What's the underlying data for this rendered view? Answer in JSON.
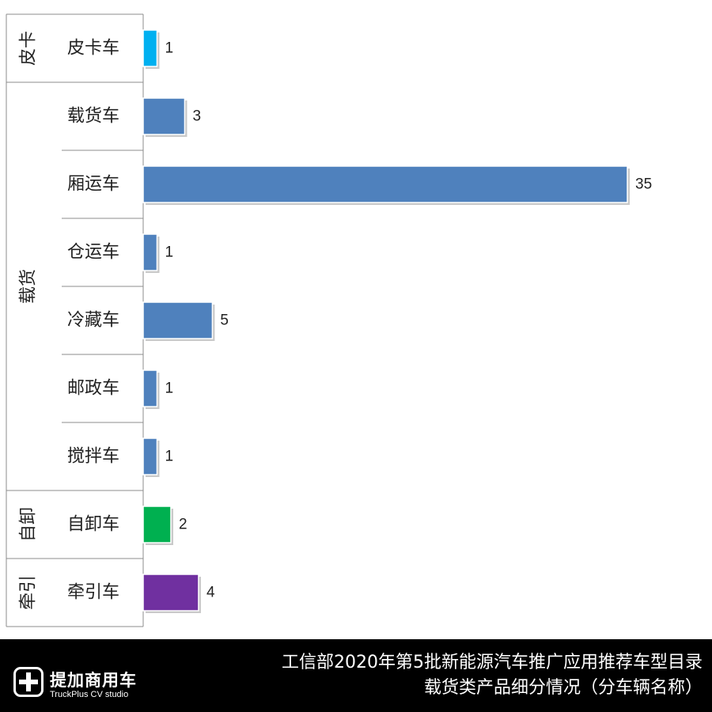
{
  "chart_data": {
    "type": "bar",
    "orientation": "horizontal",
    "groups": [
      {
        "name": "皮卡",
        "items": [
          {
            "label": "皮卡车",
            "value": 1,
            "color": "#00B0F0"
          }
        ]
      },
      {
        "name": "载货",
        "items": [
          {
            "label": "载货车",
            "value": 3,
            "color": "#4F81BD"
          },
          {
            "label": "厢运车",
            "value": 35,
            "color": "#4F81BD"
          },
          {
            "label": "仓运车",
            "value": 1,
            "color": "#4F81BD"
          },
          {
            "label": "冷藏车",
            "value": 5,
            "color": "#4F81BD"
          },
          {
            "label": "邮政车",
            "value": 1,
            "color": "#4F81BD"
          },
          {
            "label": "搅拌车",
            "value": 1,
            "color": "#4F81BD"
          }
        ]
      },
      {
        "name": "自卸",
        "items": [
          {
            "label": "自卸车",
            "value": 2,
            "color": "#00B050"
          }
        ]
      },
      {
        "name": "牵引",
        "items": [
          {
            "label": "牵引车",
            "value": 4,
            "color": "#7030A0"
          }
        ]
      }
    ],
    "xlim": [
      0,
      35
    ],
    "grid": false,
    "legend": false,
    "data_labels": true
  },
  "footer": {
    "logo_cn": "提加商用车",
    "logo_en": "TruckPlus CV studio",
    "title_line1": "工信部2020年第5批新能源汽车推广应用推荐车型目录",
    "title_line2": "载货类产品细分情况（分车辆名称）"
  }
}
